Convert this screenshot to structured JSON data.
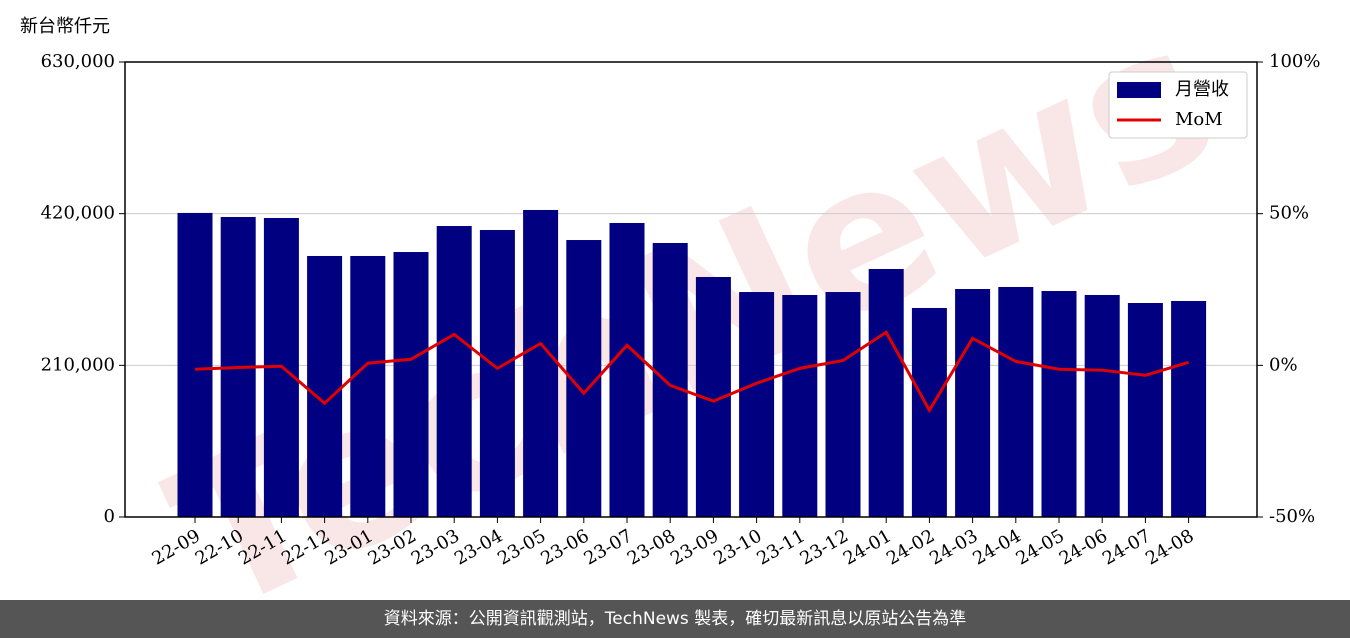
{
  "chart_data": {
    "type": "bar_line",
    "y_axis_label": "新台幣仟元",
    "watermark": "TechNews",
    "categories": [
      "22-09",
      "22-10",
      "22-11",
      "22-12",
      "23-01",
      "23-02",
      "23-03",
      "23-04",
      "23-05",
      "23-06",
      "23-07",
      "23-08",
      "23-09",
      "23-10",
      "23-11",
      "23-12",
      "24-01",
      "24-02",
      "24-03",
      "24-04",
      "24-05",
      "24-06",
      "24-07",
      "24-08"
    ],
    "series": [
      {
        "name": "月營收",
        "type": "bar",
        "color": "#000080",
        "values": [
          421000,
          415400,
          414000,
          361400,
          361400,
          366900,
          402900,
          397400,
          425100,
          383500,
          407100,
          379400,
          332300,
          311500,
          307400,
          311500,
          343400,
          289400,
          315700,
          318500,
          312900,
          307400,
          296300,
          299100
        ]
      },
      {
        "name": "MoM",
        "type": "line",
        "axis": "y2",
        "color": "#e00000",
        "values": [
          -1.3,
          -0.7,
          -0.3,
          -12.5,
          0.7,
          2.0,
          10.2,
          -1.0,
          7.2,
          -9.2,
          6.6,
          -6.6,
          -11.8,
          -5.9,
          -1.0,
          1.6,
          10.9,
          -14.8,
          8.9,
          1.3,
          -1.3,
          -1.6,
          -3.3,
          1.0
        ]
      }
    ],
    "ylim": [
      0,
      630000
    ],
    "yticks": [
      0,
      {
        "value": 210000,
        "label": "210,000"
      },
      {
        "value": 420000,
        "label": "420,000"
      },
      {
        "value": 630000,
        "label": "630,000"
      }
    ],
    "y2lim": [
      -50,
      100
    ],
    "y2ticks": [
      {
        "value": -50,
        "label": "-50%"
      },
      {
        "value": 0,
        "label": "0%"
      },
      {
        "value": 50,
        "label": "50%"
      },
      {
        "value": 100,
        "label": "100%"
      }
    ],
    "grid": true,
    "legend": "upper right",
    "footer": "資料來源：公開資訊觀測站，TechNews 製表，確切最新訊息以原站公告為準"
  }
}
